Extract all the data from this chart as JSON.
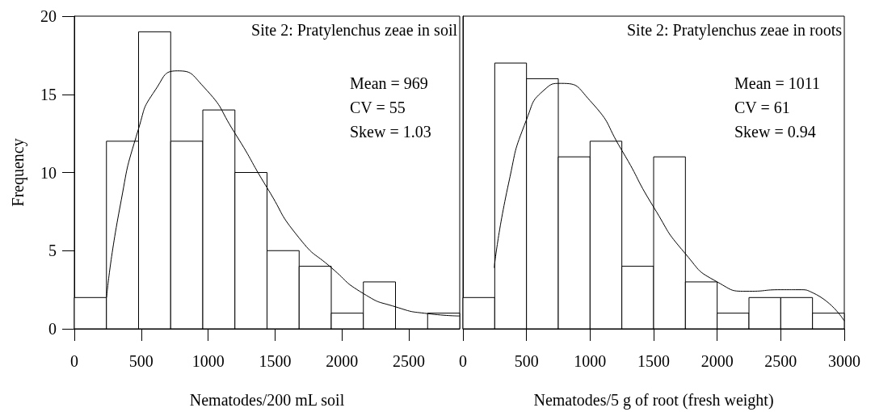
{
  "chart_data": [
    {
      "type": "histogram",
      "title": "Site 2: Pratylenchus zeae in soil",
      "xlabel": "Nematodes/200 mL soil",
      "ylabel": "Frequency",
      "color": "#ffffff",
      "bins": [
        0,
        240,
        480,
        720,
        960,
        1200,
        1440,
        1680,
        1920,
        2160,
        2400,
        2640,
        2880
      ],
      "values": [
        2,
        12,
        19,
        12,
        14,
        10,
        5,
        4,
        1,
        3,
        0,
        1
      ],
      "series": [
        {
          "type": "line",
          "color": "#000000",
          "x": [
            241,
            339,
            480,
            607,
            770,
            964,
            1201,
            1442,
            1681,
            1922,
            2161,
            2402,
            2641,
            2880
          ],
          "values": [
            2.0,
            7.7,
            12.8,
            15.3,
            16.5,
            15.5,
            12.5,
            9.0,
            5.8,
            3.9,
            2.25,
            1.4,
            0.97,
            0.82
          ]
        }
      ],
      "xlim": [
        0,
        2880
      ],
      "xticks": [
        0,
        500,
        1000,
        1500,
        2000,
        2500
      ],
      "ylim": [
        0,
        20
      ],
      "yticks": [
        0,
        5,
        10,
        15,
        20
      ],
      "annotations": [
        "Mean = 969",
        "CV = 55",
        "Skew = 1.03"
      ]
    },
    {
      "type": "histogram",
      "title": "Site 2: Pratylenchus zeae in roots",
      "xlabel": "Nematodes/5 g of root (fresh weight)",
      "color": "#ffffff",
      "bins": [
        0,
        250,
        500,
        750,
        1000,
        1250,
        1500,
        1750,
        2000,
        2250,
        2500,
        2750,
        3000
      ],
      "values": [
        2,
        17,
        16,
        11,
        12,
        4,
        11,
        3,
        1,
        2,
        2,
        1
      ],
      "series": [
        {
          "type": "line",
          "color": "#000000",
          "x": [
            246,
            359,
            501,
            642,
            773,
            999,
            1251,
            1499,
            1750,
            2000,
            2252,
            2500,
            2644,
            2753,
            3000
          ],
          "values": [
            3.9,
            9.3,
            13.4,
            15.3,
            15.7,
            14.6,
            11.4,
            7.8,
            4.8,
            3.0,
            2.4,
            2.5,
            2.5,
            2.3,
            0.5
          ]
        }
      ],
      "xlim": [
        0,
        3000
      ],
      "xticks": [
        0,
        500,
        1000,
        1500,
        2000,
        2500,
        3000
      ],
      "ylim": [
        0,
        20
      ],
      "yticks": [
        0,
        5,
        10,
        15,
        20
      ],
      "tick_labels": "x",
      "annotations": [
        "Mean = 1011",
        "CV = 61",
        "Skew = 0.94"
      ]
    }
  ]
}
